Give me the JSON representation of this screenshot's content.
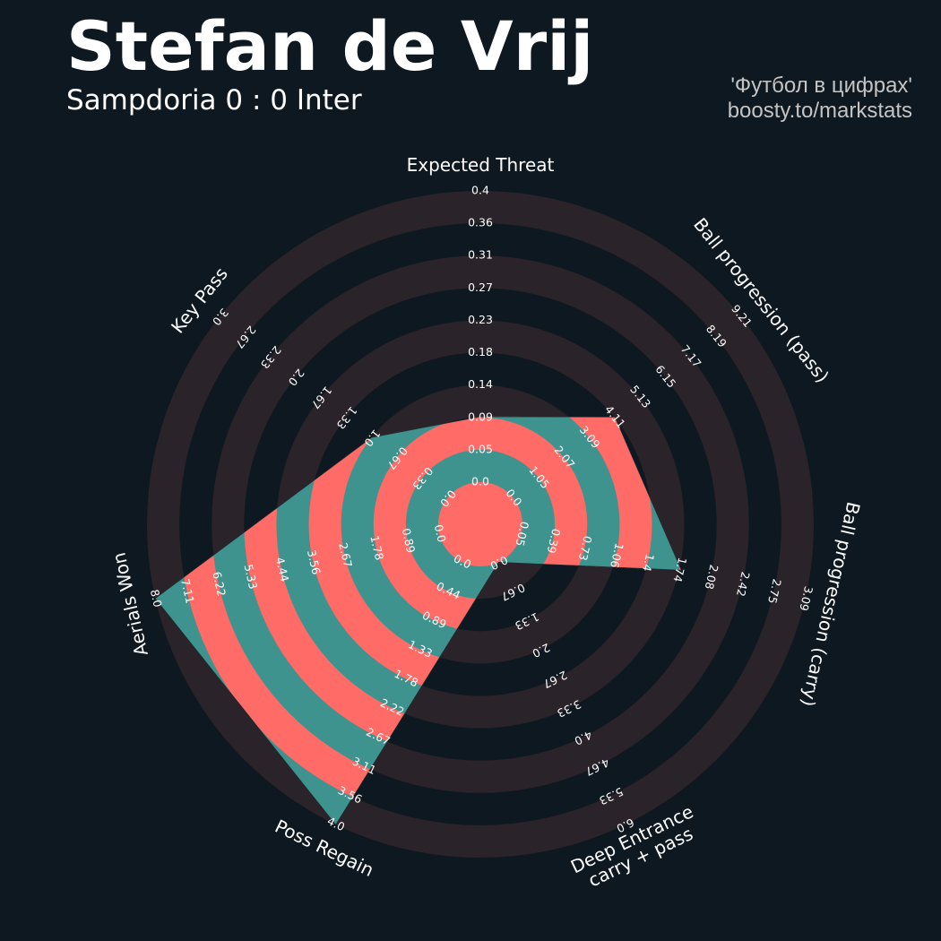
{
  "header": {
    "title": "Stefan de Vrij",
    "subtitle": "Sampdoria 0 : 0 Inter",
    "credit_line1": "'Футбол в цифрах'",
    "credit_line2": "boosty.to/markstats"
  },
  "colors": {
    "background": "#0e1820",
    "ring_band": "#2a2329",
    "fill_primary": "#3f938e",
    "fill_alternate": "#ff6b66",
    "text": "#ffffff"
  },
  "chart_data": {
    "type": "radar",
    "title": "Stefan de Vrij",
    "subtitle": "Sampdoria 0 : 0 Inter",
    "params": [
      {
        "label": "Expected Threat",
        "value": 0.09,
        "min": 0.0,
        "max": 0.4,
        "ticks": [
          "0.0",
          "0.05",
          "0.09",
          "0.14",
          "0.18",
          "0.23",
          "0.27",
          "0.31",
          "0.36",
          "0.4"
        ]
      },
      {
        "label": "Ball progression (pass)",
        "value": 4.11,
        "min": 0.0,
        "max": 9.21,
        "ticks": [
          "0.0",
          "1.05",
          "2.07",
          "3.09",
          "4.11",
          "5.13",
          "6.15",
          "7.17",
          "8.19",
          "9.21"
        ]
      },
      {
        "label": "Ball progression (carry)",
        "value": 1.74,
        "min": 0.0,
        "max": 3.09,
        "ticks": [
          "0.05",
          "0.39",
          "0.73",
          "1.06",
          "1.4",
          "1.74",
          "2.08",
          "2.42",
          "2.75",
          "3.09"
        ]
      },
      {
        "label": "Deep Entrance\ncarry + pass",
        "value": 0.0,
        "min": 0.0,
        "max": 6.0,
        "ticks": [
          "0.0",
          "0.67",
          "1.33",
          "2.0",
          "2.67",
          "3.33",
          "4.0",
          "4.67",
          "5.33",
          "6.0"
        ]
      },
      {
        "label": "Poss Regain",
        "value": 4.0,
        "min": 0.0,
        "max": 4.0,
        "ticks": [
          "0.0",
          "0.44",
          "0.89",
          "1.33",
          "1.78",
          "2.22",
          "2.67",
          "3.11",
          "3.56",
          "4.0"
        ]
      },
      {
        "label": "Aerials Won",
        "value": 8.0,
        "min": 0.0,
        "max": 8.0,
        "ticks": [
          "0.0",
          "0.89",
          "1.78",
          "2.67",
          "3.56",
          "4.44",
          "5.33",
          "6.22",
          "7.11",
          "8.0"
        ]
      },
      {
        "label": "Key Pass",
        "value": 1.0,
        "min": 0.0,
        "max": 3.0,
        "ticks": [
          "0.0",
          "0.33",
          "0.67",
          "1.0",
          "1.33",
          "1.67",
          "2.0",
          "2.33",
          "2.67",
          "3.0"
        ]
      }
    ]
  }
}
